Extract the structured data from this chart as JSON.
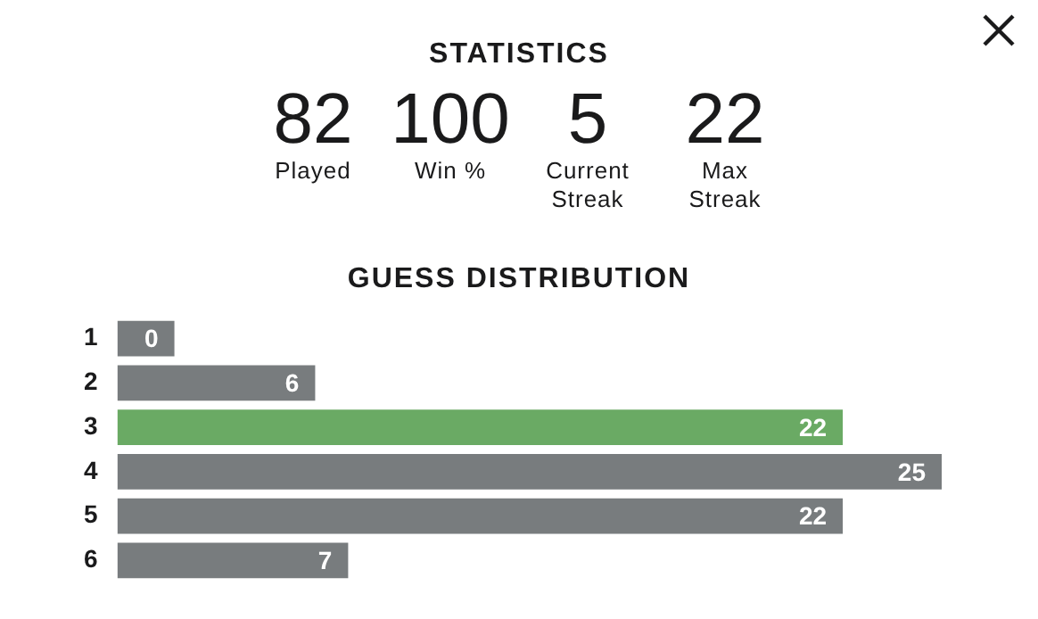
{
  "chart_data": [
    {
      "type": "other",
      "title": "STATISTICS",
      "annotations": [
        "82",
        "Played",
        "100",
        "Win %",
        "5",
        "Current Streak",
        "22",
        "Max Streak"
      ]
    },
    {
      "type": "bar",
      "orientation": "horizontal",
      "title": "GUESS DISTRIBUTION",
      "categories": [
        "1",
        "2",
        "3",
        "4",
        "5",
        "6"
      ],
      "values": [
        0,
        6,
        22,
        25,
        22,
        7
      ],
      "colors": [
        "#787c7e",
        "#787c7e",
        "#6aaa64",
        "#787c7e",
        "#787c7e",
        "#787c7e"
      ],
      "data_labels": true,
      "tick_labels": "y"
    }
  ]
}
